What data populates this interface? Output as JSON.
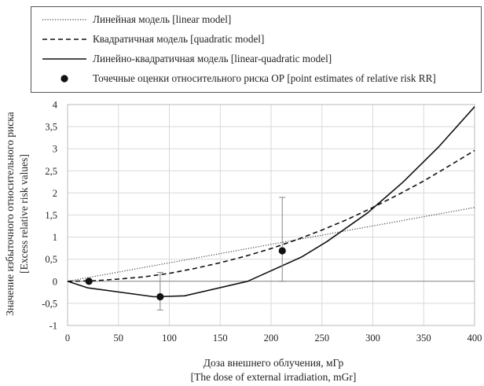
{
  "chart_data": {
    "type": "line",
    "xlabel": "Доза внешнего облучения, мГр",
    "xlabel_en": "[The dose of external irradiation, mGr]",
    "ylabel": "Значение избыточного относительного риска",
    "ylabel_en": "[Excess relative risk values]",
    "xlim": [
      0,
      400
    ],
    "ylim": [
      -1,
      4
    ],
    "x_ticks": [
      0,
      50,
      100,
      150,
      200,
      250,
      300,
      350,
      400
    ],
    "y_ticks": [
      -1,
      -0.5,
      0,
      0.5,
      1,
      1.5,
      2,
      2.5,
      3,
      3.5,
      4
    ],
    "x_tick_labels": [
      "0",
      "50",
      "100",
      "150",
      "200",
      "250",
      "300",
      "350",
      "400"
    ],
    "y_tick_labels": [
      "-1",
      "-0,5",
      "0",
      "0,5",
      "1",
      "1,5",
      "2",
      "2,5",
      "3",
      "3,5",
      "4"
    ],
    "grid": true,
    "legend_position": "top",
    "series": [
      {
        "name": "Линейная модель [linear  model]",
        "style": "dotted",
        "x": [
          0,
          400
        ],
        "y": [
          0,
          1.67
        ]
      },
      {
        "name": "Квадратичная модель [quadratic model]",
        "style": "dashed",
        "x": [
          0,
          25,
          50,
          75,
          100,
          125,
          150,
          175,
          200,
          225,
          250,
          275,
          300,
          325,
          350,
          375,
          400
        ],
        "y": [
          0,
          0.01,
          0.05,
          0.1,
          0.18,
          0.29,
          0.42,
          0.57,
          0.74,
          0.94,
          1.16,
          1.4,
          1.67,
          1.96,
          2.27,
          2.61,
          2.96
        ]
      },
      {
        "name": "Линейно-квадратичная модель [linear-quadratic  model]",
        "style": "solid",
        "x": [
          0,
          20,
          85,
          115,
          177,
          230,
          255,
          295,
          330,
          365,
          400
        ],
        "y": [
          0,
          -0.15,
          -0.35,
          -0.33,
          0,
          0.55,
          0.9,
          1.55,
          2.25,
          3.05,
          3.95
        ]
      }
    ],
    "points": {
      "name": "Точечные оценки относительного риска ОР [point estimates of relative  risk RR]",
      "style": "marker",
      "x": [
        21,
        91,
        211
      ],
      "y": [
        0,
        -0.35,
        0.69
      ],
      "err_low": [
        0,
        -0.65,
        0
      ],
      "err_high": [
        0,
        0.2,
        1.9
      ]
    }
  }
}
